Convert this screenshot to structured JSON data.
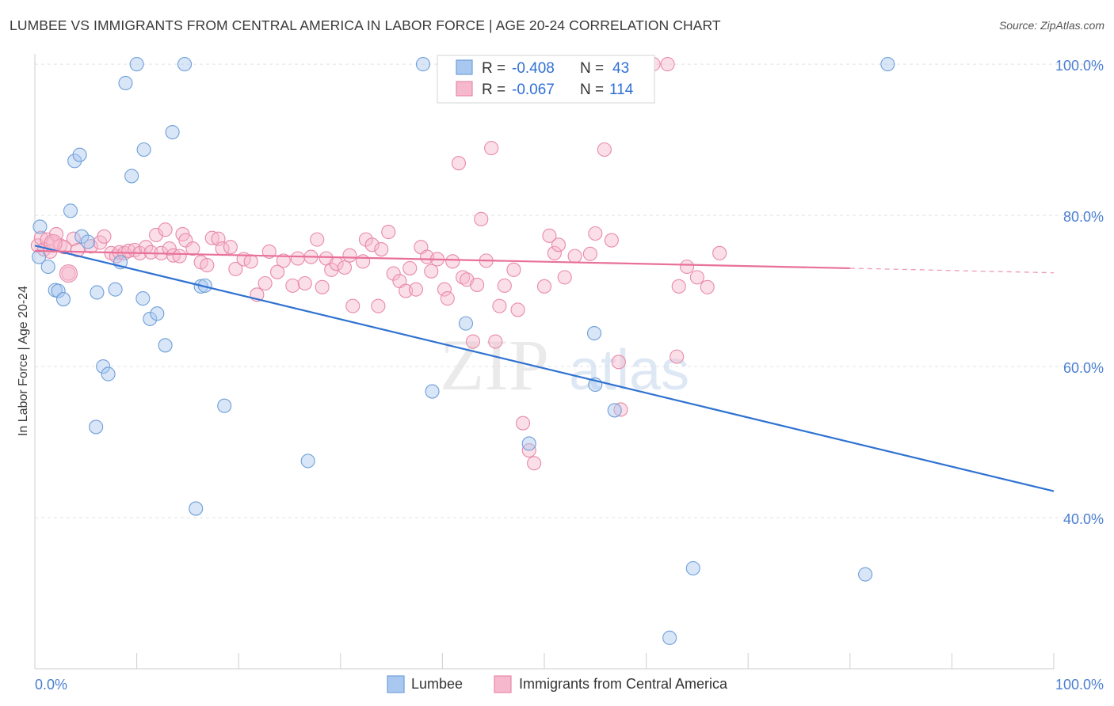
{
  "header": {
    "title": "LUMBEE VS IMMIGRANTS FROM CENTRAL AMERICA IN LABOR FORCE | AGE 20-24 CORRELATION CHART",
    "source": "Source: ZipAtlas.com"
  },
  "watermark": {
    "part1": "ZIP",
    "part2": "atlas"
  },
  "colors": {
    "blue_fill": "#a9c8ef",
    "blue_stroke": "#6f9fd8",
    "blue_line": "#2f72d1",
    "pink_fill": "#f6b8cc",
    "pink_stroke": "#e88aa8",
    "pink_line": "#e8709a",
    "tick_label": "#4a7fd0",
    "grid": "#e3e3e3"
  },
  "chart_data": {
    "type": "scatter",
    "title": "LUMBEE VS IMMIGRANTS FROM CENTRAL AMERICA IN LABOR FORCE | AGE 20-24 CORRELATION CHART",
    "ylabel": "In Labor Force | Age 20-24",
    "xlabel": "",
    "xlim": [
      0,
      100
    ],
    "ylim": [
      20,
      102
    ],
    "x_tick_labels": [
      "0.0%",
      "100.0%"
    ],
    "y_ticks": [
      40,
      60,
      80,
      100
    ],
    "y_tick_labels": [
      "40.0%",
      "60.0%",
      "80.0%",
      "100.0%"
    ],
    "grid": true,
    "legend_position": "bottom-center",
    "stats_box": {
      "rows": [
        {
          "r_label": "R = ",
          "r_value": "-0.408",
          "n_label": "N = ",
          "n_value": "43"
        },
        {
          "r_label": "R = ",
          "r_value": "-0.067",
          "n_label": "N = ",
          "n_value": "114"
        }
      ]
    },
    "series": [
      {
        "name": "Lumbee",
        "color": "#a9c8ef",
        "trend": {
          "x0": 0,
          "y0": 76.0,
          "x1": 100,
          "y1": 43.5
        },
        "points": [
          [
            0.5,
            78.5
          ],
          [
            0.4,
            74.5
          ],
          [
            1.3,
            73.2
          ],
          [
            2.0,
            70.1
          ],
          [
            2.3,
            70.0
          ],
          [
            2.8,
            68.9
          ],
          [
            3.5,
            80.6
          ],
          [
            3.9,
            87.2
          ],
          [
            4.4,
            88.0
          ],
          [
            4.6,
            77.2
          ],
          [
            5.2,
            76.5
          ],
          [
            6.0,
            52.0
          ],
          [
            6.1,
            69.8
          ],
          [
            6.7,
            60.0
          ],
          [
            7.2,
            59.0
          ],
          [
            7.9,
            70.2
          ],
          [
            8.4,
            73.8
          ],
          [
            8.9,
            97.5
          ],
          [
            9.5,
            85.2
          ],
          [
            10.0,
            100.0
          ],
          [
            10.6,
            69.0
          ],
          [
            10.7,
            88.7
          ],
          [
            11.3,
            66.3
          ],
          [
            12.0,
            67.0
          ],
          [
            12.8,
            62.8
          ],
          [
            13.5,
            91.0
          ],
          [
            14.7,
            100.0
          ],
          [
            15.8,
            41.2
          ],
          [
            16.3,
            70.6
          ],
          [
            16.7,
            70.7
          ],
          [
            18.6,
            54.8
          ],
          [
            26.8,
            47.5
          ],
          [
            38.1,
            100.0
          ],
          [
            39.0,
            56.7
          ],
          [
            42.3,
            65.7
          ],
          [
            48.5,
            49.8
          ],
          [
            54.9,
            64.4
          ],
          [
            55.0,
            57.6
          ],
          [
            56.9,
            54.2
          ],
          [
            64.6,
            33.3
          ],
          [
            62.3,
            24.1
          ],
          [
            81.5,
            32.5
          ],
          [
            83.7,
            100.0
          ]
        ]
      },
      {
        "name": "Immigrants from Central America",
        "color": "#f6b8cc",
        "trend": {
          "x0": 0,
          "y0": 75.3,
          "x1": 80,
          "y1": 73.0,
          "dash_to_x": 100,
          "dash_to_y": 72.4
        },
        "points": [
          [
            0.3,
            76.0
          ],
          [
            0.6,
            77.0
          ],
          [
            0.9,
            75.5
          ],
          [
            1.2,
            76.8
          ],
          [
            1.5,
            75.2
          ],
          [
            1.8,
            76.3
          ],
          [
            2.1,
            77.5
          ],
          [
            2.5,
            76.0
          ],
          [
            2.9,
            75.8
          ],
          [
            3.3,
            72.3
          ],
          [
            3.8,
            76.9
          ],
          [
            4.2,
            75.4
          ],
          [
            5.5,
            75.9
          ],
          [
            6.4,
            76.4
          ],
          [
            6.8,
            77.2
          ],
          [
            7.5,
            75.0
          ],
          [
            8.0,
            74.6
          ],
          [
            8.3,
            75.1
          ],
          [
            8.8,
            75.0
          ],
          [
            9.2,
            75.3
          ],
          [
            9.8,
            75.4
          ],
          [
            10.3,
            75.0
          ],
          [
            10.9,
            75.8
          ],
          [
            11.4,
            75.1
          ],
          [
            11.9,
            77.4
          ],
          [
            12.4,
            75.0
          ],
          [
            12.8,
            78.1
          ],
          [
            13.2,
            75.6
          ],
          [
            13.6,
            74.7
          ],
          [
            14.2,
            74.6
          ],
          [
            14.5,
            77.5
          ],
          [
            14.8,
            76.7
          ],
          [
            15.5,
            75.6
          ],
          [
            16.3,
            73.8
          ],
          [
            16.9,
            73.4
          ],
          [
            17.4,
            77.0
          ],
          [
            18.0,
            76.9
          ],
          [
            18.4,
            75.6
          ],
          [
            19.2,
            75.8
          ],
          [
            19.7,
            72.9
          ],
          [
            20.5,
            74.2
          ],
          [
            21.2,
            73.9
          ],
          [
            21.8,
            69.5
          ],
          [
            22.6,
            71.0
          ],
          [
            23.0,
            75.2
          ],
          [
            23.8,
            72.5
          ],
          [
            24.4,
            74.0
          ],
          [
            25.3,
            70.7
          ],
          [
            25.8,
            74.3
          ],
          [
            26.5,
            71.0
          ],
          [
            27.1,
            74.5
          ],
          [
            27.7,
            76.8
          ],
          [
            28.2,
            70.5
          ],
          [
            28.6,
            74.3
          ],
          [
            29.1,
            72.8
          ],
          [
            29.6,
            73.6
          ],
          [
            30.4,
            73.1
          ],
          [
            30.9,
            74.7
          ],
          [
            31.2,
            68.0
          ],
          [
            32.2,
            73.9
          ],
          [
            32.5,
            76.8
          ],
          [
            33.1,
            76.1
          ],
          [
            33.7,
            68.0
          ],
          [
            34.0,
            75.5
          ],
          [
            34.7,
            77.8
          ],
          [
            35.2,
            72.3
          ],
          [
            35.8,
            71.3
          ],
          [
            36.4,
            70.0
          ],
          [
            36.8,
            73.0
          ],
          [
            37.4,
            70.2
          ],
          [
            37.9,
            75.8
          ],
          [
            38.5,
            74.5
          ],
          [
            38.9,
            72.6
          ],
          [
            39.5,
            74.2
          ],
          [
            40.2,
            70.2
          ],
          [
            40.5,
            69.0
          ],
          [
            41.0,
            73.9
          ],
          [
            41.6,
            86.9
          ],
          [
            42.0,
            71.8
          ],
          [
            42.4,
            71.5
          ],
          [
            43.0,
            63.3
          ],
          [
            43.4,
            70.8
          ],
          [
            43.8,
            79.5
          ],
          [
            44.3,
            74.0
          ],
          [
            44.8,
            88.9
          ],
          [
            45.2,
            63.3
          ],
          [
            45.6,
            68.0
          ],
          [
            46.1,
            70.7
          ],
          [
            46.6,
            100.0
          ],
          [
            47.0,
            72.8
          ],
          [
            47.4,
            67.5
          ],
          [
            47.9,
            52.5
          ],
          [
            48.5,
            48.9
          ],
          [
            49.0,
            47.2
          ],
          [
            50.0,
            70.6
          ],
          [
            50.5,
            77.3
          ],
          [
            51.0,
            75.0
          ],
          [
            51.4,
            76.1
          ],
          [
            52.0,
            71.8
          ],
          [
            53.0,
            74.6
          ],
          [
            54.5,
            74.9
          ],
          [
            55.0,
            77.6
          ],
          [
            55.9,
            88.7
          ],
          [
            56.6,
            76.7
          ],
          [
            57.3,
            60.6
          ],
          [
            57.5,
            54.3
          ],
          [
            60.7,
            100.0
          ],
          [
            62.1,
            100.0
          ],
          [
            63.0,
            61.3
          ],
          [
            63.2,
            70.6
          ],
          [
            64.0,
            73.2
          ],
          [
            65.0,
            71.8
          ],
          [
            66.0,
            70.5
          ],
          [
            67.2,
            75.0
          ]
        ]
      }
    ]
  },
  "legend": {
    "items": [
      {
        "label": "Lumbee"
      },
      {
        "label": "Immigrants from Central America"
      }
    ]
  }
}
